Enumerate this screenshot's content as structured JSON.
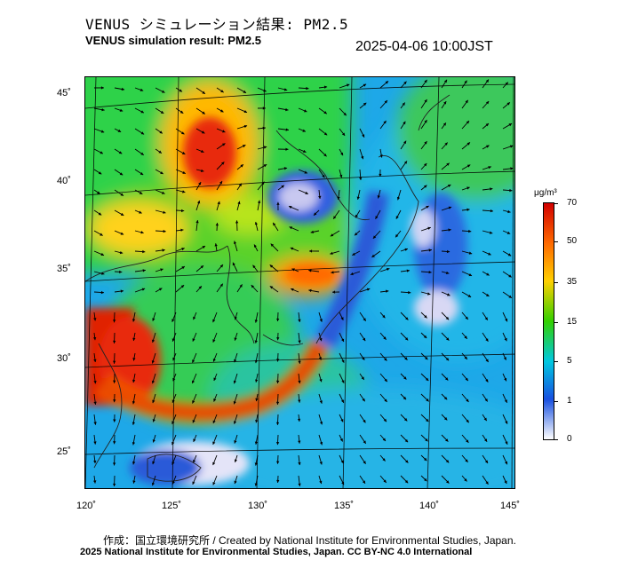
{
  "title_jp": "VENUS シミュレーション結果: PM2.5",
  "title_en": "VENUS simulation result: PM2.5",
  "timestamp": "2025-04-06 10:00JST",
  "map": {
    "lon_labels": [
      "120˚",
      "125˚",
      "130˚",
      "135˚",
      "140˚",
      "145˚"
    ],
    "lat_labels": [
      "45˚",
      "40˚",
      "35˚",
      "30˚",
      "25˚"
    ]
  },
  "colorbar": {
    "unit": "μg/m³",
    "labels": [
      "70",
      "50",
      "35",
      "15",
      "5",
      "1",
      "0"
    ],
    "colors": [
      "#d10000",
      "#ff6a00",
      "#ffd000",
      "#33d000",
      "#00c8e0",
      "#1850e0",
      "#ffffff"
    ]
  },
  "credits": {
    "line1": "作成：国立環境研究所 / Created by National Institute for Environmental Studies, Japan.",
    "line2": "2025 National Institute for Environmental Studies, Japan. CC BY-NC 4.0 International"
  }
}
